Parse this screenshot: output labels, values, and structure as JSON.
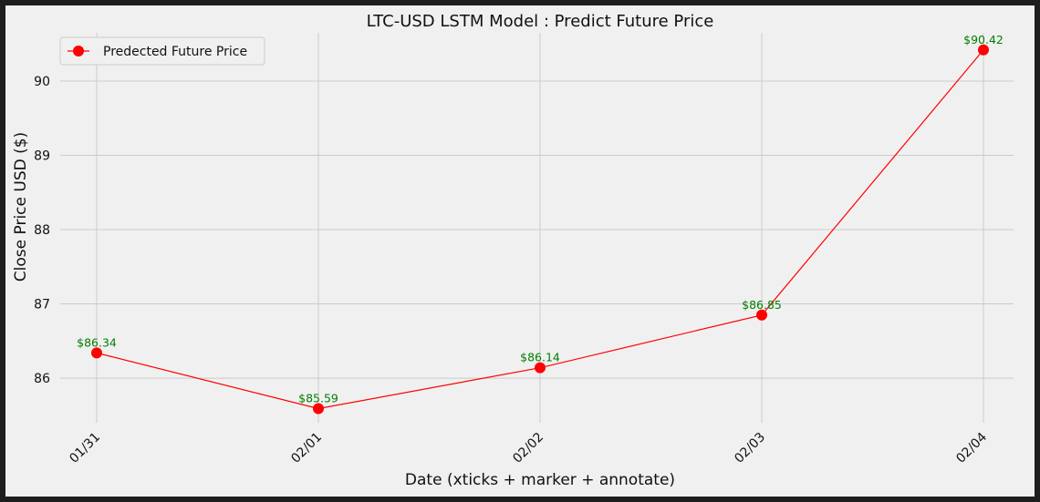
{
  "chart_data": {
    "type": "line",
    "title": "LTC-USD LSTM Model : Predict Future Price",
    "xlabel": "Date (xticks + marker + annotate)",
    "ylabel": "Close Price USD ($)",
    "categories": [
      "01/31",
      "02/01",
      "02/02",
      "02/03",
      "02/04"
    ],
    "series": [
      {
        "name": "Predected Future Price",
        "values": [
          86.34,
          85.59,
          86.14,
          86.85,
          90.42
        ],
        "annotations": [
          "$86.34",
          "$85.59",
          "$86.14",
          "$86.85",
          "$90.42"
        ]
      }
    ],
    "ylim": [
      85.4,
      90.65
    ],
    "yticks": [
      86,
      87,
      88,
      89,
      90
    ],
    "grid": true,
    "legend_position": "top-left",
    "colors": {
      "line": "#ff0000",
      "marker": "#ff0000",
      "annotation": "#008000",
      "grid": "#cbcbcb",
      "background": "#f0f0f0",
      "frame": "#1e1e1e"
    }
  }
}
